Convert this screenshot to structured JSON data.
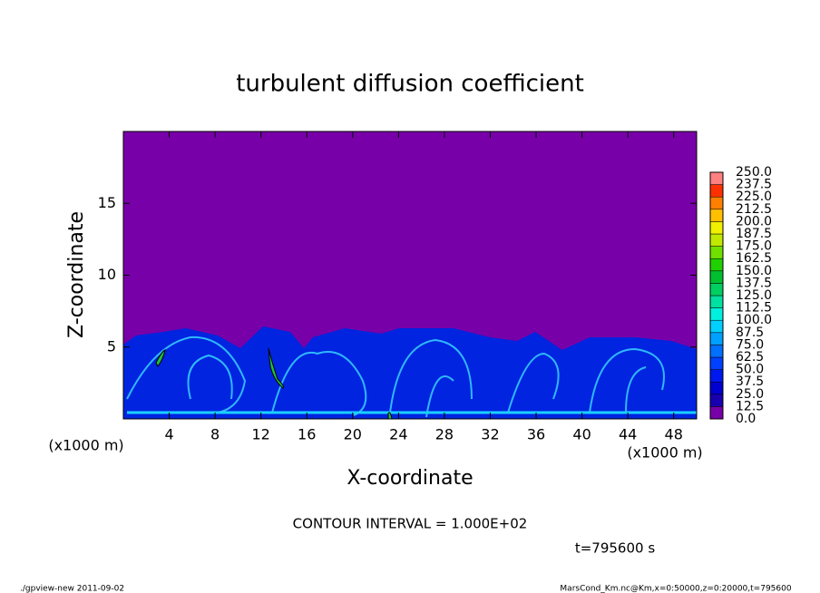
{
  "chart_data": {
    "type": "contour",
    "title": "turbulent diffusion coefficient",
    "xlabel": "X-coordinate",
    "ylabel": "Z-coordinate",
    "xunit": "(x1000 m)",
    "yunit": "(x1000 m)",
    "xlim": [
      0,
      50
    ],
    "xticks": [
      4,
      8,
      12,
      16,
      20,
      24,
      28,
      32,
      36,
      40,
      44,
      48
    ],
    "ylim": [
      0,
      20
    ],
    "yticks": [
      5,
      10,
      15
    ],
    "levels": [
      {
        "value": 0,
        "label": "0.0"
      },
      12.5,
      {
        "value": 25,
        "label": "25.0"
      },
      37.5,
      {
        "value": 50,
        "label": "50.0"
      },
      62.5,
      {
        "value": 75,
        "label": "75.0"
      },
      87.5,
      {
        "value": 100,
        "label": "100.0"
      },
      112.5,
      {
        "value": 125,
        "label": "125.0"
      },
      137.5,
      {
        "value": 150,
        "label": "150.0"
      },
      162.5,
      {
        "value": 175,
        "label": "175.0"
      },
      187.5,
      {
        "value": 200,
        "label": "200.0"
      },
      212.5,
      {
        "value": 225,
        "label": "225.0"
      },
      237.5,
      {
        "value": 250,
        "label": "250.0"
      }
    ],
    "colors": [
      "#7800a8",
      "#1800b0",
      "#0000d0",
      "#0018f0",
      "#0040ff",
      "#0070ff",
      "#00a0ff",
      "#00d0ff",
      "#00f0e0",
      "#00e0a0",
      "#00d060",
      "#00c030",
      "#20d000",
      "#70e000",
      "#c0e800",
      "#f0f000",
      "#ffc000",
      "#ff8000",
      "#ff3000",
      "#ff8080"
    ],
    "contour_interval": "CONTOUR INTERVAL = 1.000E+02",
    "time": "t=795600 s",
    "footer_left": "./gpview-new  2011-09-02",
    "footer_right": "MarsCond_Km.nc@Km,x=0:50000,z=0:20000,t=795600"
  }
}
